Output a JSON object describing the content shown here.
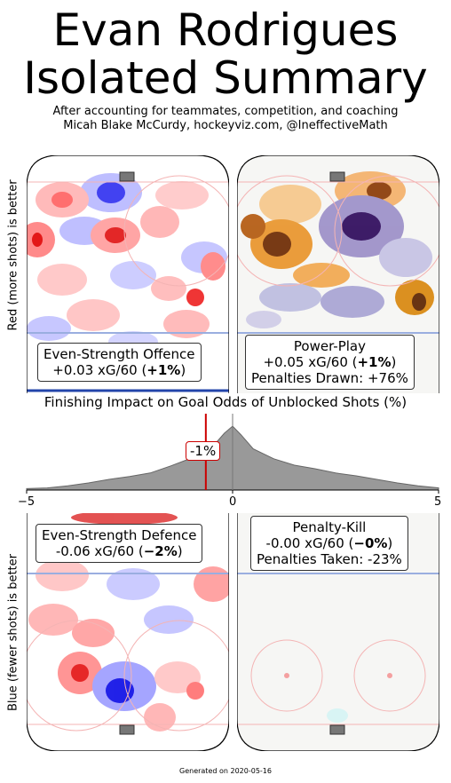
{
  "title_line1": "Evan Rodrigues",
  "title_line2": "Isolated Summary",
  "subtitle_line1": "After accounting for teammates, competition, and coaching",
  "subtitle_line2": "Micah Blake McCurdy, hockeyviz.com, @IneffectiveMath",
  "ylabel_top": "Red (more shots) is better",
  "ylabel_bottom": "Blue (fewer shots) is better",
  "panels": {
    "es_offence": {
      "title": "Even-Strength Offence",
      "value": "+0.03 xG/60 (",
      "pct": "+1%",
      "close": ")"
    },
    "power_play": {
      "title": "Power-Play",
      "value": "+0.05 xG/60 (",
      "pct": "+1%",
      "close": ")",
      "extra": "Penalties Drawn: +76%"
    },
    "es_defence": {
      "title": "Even-Strength Defence",
      "value": "-0.06 xG/60 (",
      "pct": "−2%",
      "close": ")"
    },
    "penalty_kill": {
      "title": "Penalty-Kill",
      "value": "-0.00 xG/60 (",
      "pct": "−0%",
      "close": ")",
      "extra": "Penalties Taken: -23%"
    }
  },
  "finishing": {
    "title": "Finishing Impact on Goal Odds of Unblocked Shots (%)",
    "marker_label": "-1%",
    "ticks": [
      "−5",
      "0",
      "5"
    ]
  },
  "footer": "Generated on 2020-05-16",
  "chart_data": {
    "type": "area",
    "title": "Finishing Impact on Goal Odds of Unblocked Shots (%)",
    "xlim": [
      -5,
      5
    ],
    "x": [
      -5,
      -4.5,
      -4,
      -3.5,
      -3,
      -2.5,
      -2,
      -1.5,
      -1,
      -0.5,
      -0.2,
      0,
      0.2,
      0.5,
      1,
      1.5,
      2,
      2.5,
      3,
      3.5,
      4,
      4.5,
      5
    ],
    "density": [
      0.02,
      0.03,
      0.06,
      0.1,
      0.15,
      0.19,
      0.24,
      0.34,
      0.45,
      0.6,
      0.8,
      0.9,
      0.78,
      0.58,
      0.44,
      0.35,
      0.3,
      0.24,
      0.2,
      0.15,
      0.1,
      0.06,
      0.03
    ],
    "player_value": -0.65,
    "zero_line": 0,
    "colors": {
      "density": "#999999",
      "player": "#cc0000",
      "zero": "#777777"
    }
  }
}
